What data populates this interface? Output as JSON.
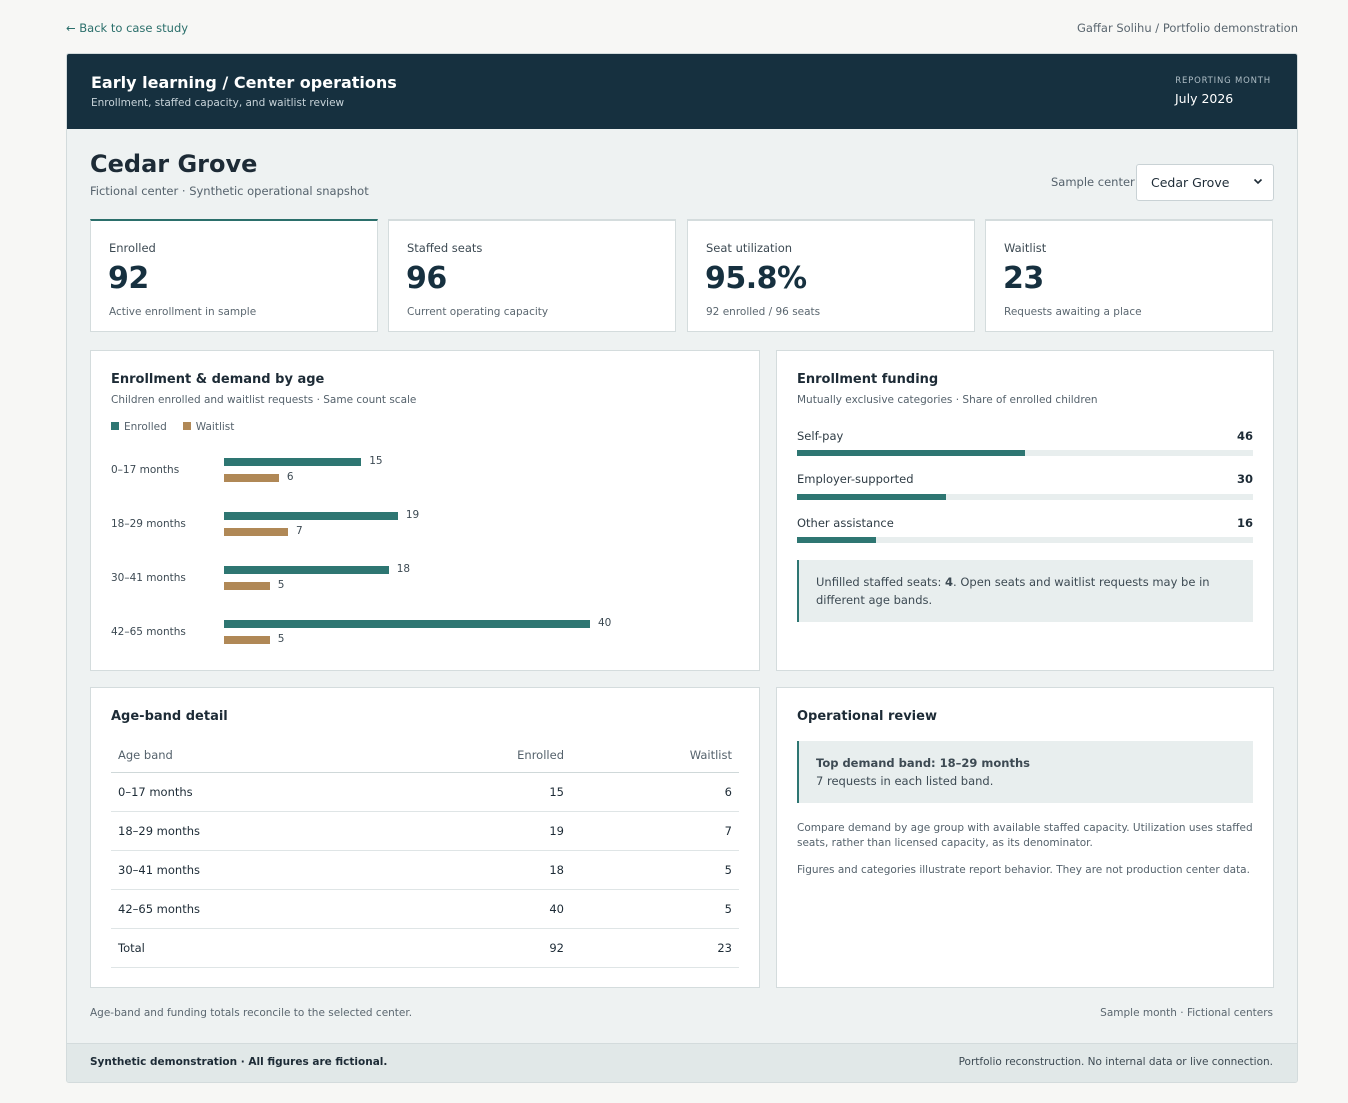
{
  "nav": {
    "back_label": "← Back to case study",
    "attribution": "Gaffar Solihu / Portfolio demonstration"
  },
  "banner": {
    "title": "Early learning / Center operations",
    "subtitle": "Enrollment, staffed capacity, and waitlist review",
    "reporting_label": "Reporting month",
    "reporting_value": "July 2026"
  },
  "center": {
    "name": "Cedar Grove",
    "subtitle": "Fictional center · Synthetic operational snapshot",
    "selector_label": "Sample center",
    "selector_value": "Cedar Grove"
  },
  "kpis": [
    {
      "label": "Enrolled",
      "value": "92",
      "note": "Active enrollment in sample"
    },
    {
      "label": "Staffed seats",
      "value": "96",
      "note": "Current operating capacity"
    },
    {
      "label": "Seat utilization",
      "value": "95.8%",
      "note": "92 enrolled / 96 seats"
    },
    {
      "label": "Waitlist",
      "value": "23",
      "note": "Requests awaiting a place"
    }
  ],
  "chart_panel": {
    "title": "Enrollment & demand by age",
    "subtitle": "Children enrolled and waitlist requests · Same count scale"
  },
  "chart_data": {
    "type": "bar",
    "orientation": "horizontal",
    "categories": [
      "0–17 months",
      "18–29 months",
      "30–41 months",
      "42–65 months"
    ],
    "series": [
      {
        "name": "Enrolled",
        "values": [
          15,
          19,
          18,
          40
        ],
        "color": "#2e7672"
      },
      {
        "name": "Waitlist",
        "values": [
          6,
          7,
          5,
          5
        ],
        "color": "#b08856"
      }
    ],
    "legend_position": "top-left"
  },
  "funding": {
    "title": "Enrollment funding",
    "subtitle": "Mutually exclusive categories · Share of enrolled children",
    "items": [
      {
        "label": "Self-pay",
        "value": "46",
        "share": 0.5
      },
      {
        "label": "Employer-supported",
        "value": "30",
        "share": 0.326
      },
      {
        "label": "Other assistance",
        "value": "16",
        "share": 0.174
      }
    ],
    "callout_prefix": "Unfilled staffed seats: ",
    "callout_value": "4",
    "callout_suffix": ". Open seats and waitlist requests may be in different age bands."
  },
  "table": {
    "title": "Age-band detail",
    "headers": [
      "Age band",
      "Enrolled",
      "Waitlist"
    ],
    "rows": [
      [
        "0–17 months",
        "15",
        "6"
      ],
      [
        "18–29 months",
        "19",
        "7"
      ],
      [
        "30–41 months",
        "18",
        "5"
      ],
      [
        "42–65 months",
        "40",
        "5"
      ],
      [
        "Total",
        "92",
        "23"
      ]
    ]
  },
  "review": {
    "title": "Operational review",
    "callout_title": "Top demand band: 18–29 months",
    "callout_text": "7 requests in each listed band.",
    "p1": "Compare demand by age group with available staffed capacity. Utilization uses staffed seats, rather than licensed capacity, as its denominator.",
    "p2": "Figures and categories illustrate report behavior. They are not production center data."
  },
  "footnotes": {
    "left": "Age-band and funding totals reconcile to the selected center.",
    "right": "Sample month · Fictional centers"
  },
  "footer": {
    "left": "Synthetic demonstration · All figures are fictional.",
    "right": "Portfolio reconstruction. No internal data or live connection."
  }
}
